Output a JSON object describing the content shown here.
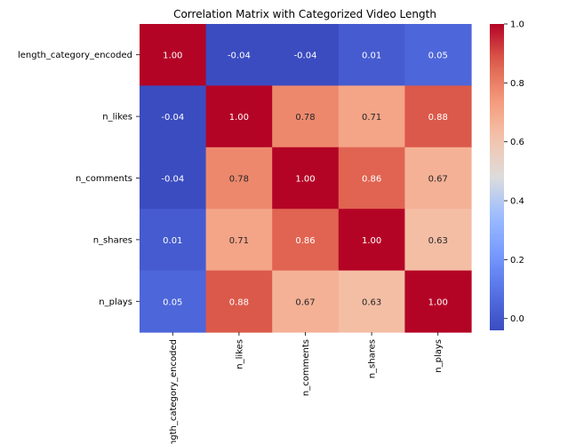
{
  "chart_data": {
    "type": "heatmap",
    "title": "Correlation Matrix with Categorized Video Length",
    "rows": [
      "length_category_encoded",
      "n_likes",
      "n_comments",
      "n_shares",
      "n_plays"
    ],
    "columns": [
      "length_category_encoded",
      "n_likes",
      "n_comments",
      "n_shares",
      "n_plays"
    ],
    "values": [
      [
        1.0,
        -0.04,
        -0.04,
        0.01,
        0.05
      ],
      [
        -0.04,
        1.0,
        0.78,
        0.71,
        0.88
      ],
      [
        -0.04,
        0.78,
        1.0,
        0.86,
        0.67
      ],
      [
        0.01,
        0.71,
        0.86,
        1.0,
        0.63
      ],
      [
        0.05,
        0.88,
        0.67,
        0.63,
        1.0
      ]
    ],
    "value_format": "0.00",
    "colormap": "coolwarm",
    "vmin": -0.04,
    "vmax": 1.0,
    "colorbar_ticks": [
      0.0,
      0.2,
      0.4,
      0.6,
      0.8,
      1.0
    ],
    "colorbar_tick_labels": [
      "0.0",
      "0.2",
      "0.4",
      "0.6",
      "0.8",
      "1.0"
    ],
    "grid": false,
    "legend": "colorbar-right"
  }
}
